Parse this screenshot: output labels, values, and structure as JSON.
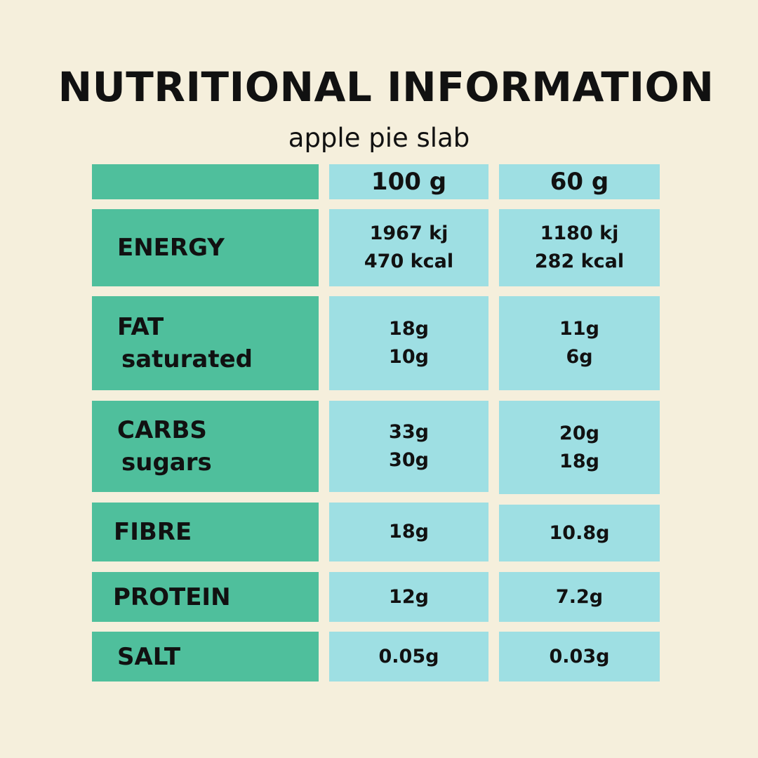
{
  "header": {
    "title": "NUTRITIONAL INFORMATION",
    "subtitle": "apple pie slab"
  },
  "table": {
    "columns": [
      "100 g",
      "60 g"
    ],
    "rows": [
      {
        "label": "ENERGY",
        "sublabel": "",
        "col1": [
          "1967 kj",
          "470 kcal"
        ],
        "col2": [
          "1180 kj",
          "282 kcal"
        ]
      },
      {
        "label": "FAT",
        "sublabel": "saturated",
        "col1": [
          "18g",
          "10g"
        ],
        "col2": [
          "11g",
          "6g"
        ]
      },
      {
        "label": "CARBS",
        "sublabel": "sugars",
        "col1": [
          "33g",
          "30g"
        ],
        "col2": [
          "20g",
          "18g"
        ]
      },
      {
        "label": "FIBRE",
        "sublabel": "",
        "col1": [
          "18g"
        ],
        "col2": [
          "10.8g"
        ]
      },
      {
        "label": "PROTEIN",
        "sublabel": "",
        "col1": [
          "12g"
        ],
        "col2": [
          "7.2g"
        ]
      },
      {
        "label": "SALT",
        "sublabel": "",
        "col1": [
          "0.05g"
        ],
        "col2": [
          "0.03g"
        ]
      }
    ]
  },
  "colors": {
    "background": "#F5EFDC",
    "label_cell": "#4FBF9C",
    "value_cell": "#9EDFE3",
    "text": "#111111"
  }
}
